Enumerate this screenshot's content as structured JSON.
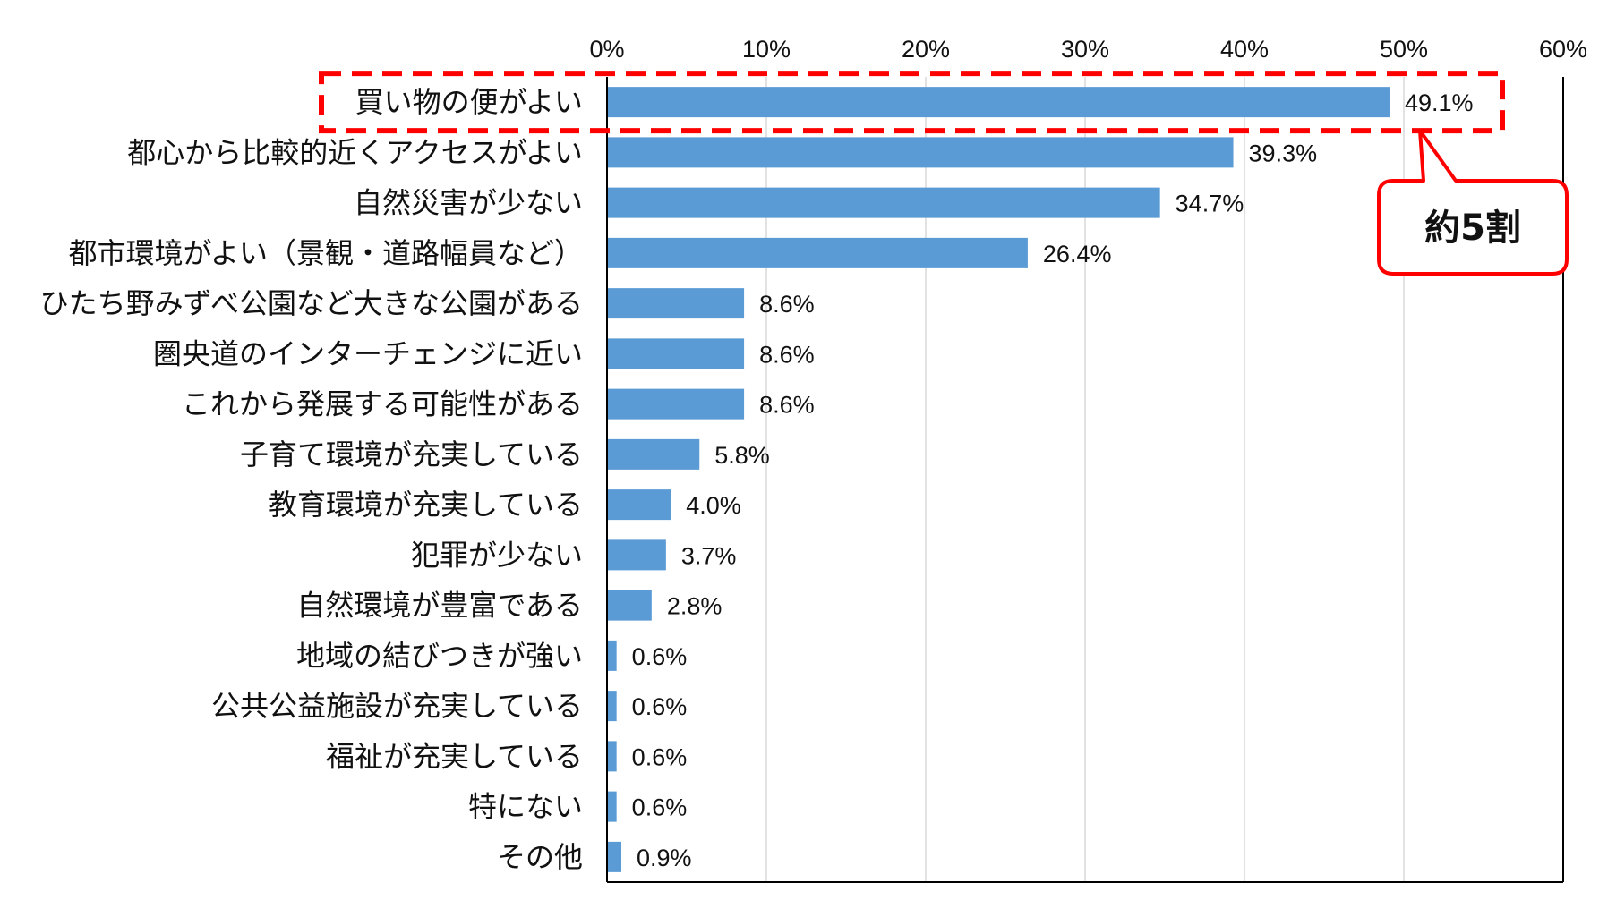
{
  "chart_data": {
    "type": "bar",
    "orientation": "horizontal",
    "categories": [
      "買い物の便がよい",
      "都心から比較的近くアクセスがよい",
      "自然災害が少ない",
      "都市環境がよい（景観・道路幅員など）",
      "ひたち野みずべ公園など大きな公園がある",
      "圏央道のインターチェンジに近い",
      "これから発展する可能性がある",
      "子育て環境が充実している",
      "教育環境が充実している",
      "犯罪が少ない",
      "自然環境が豊富である",
      "地域の結びつきが強い",
      "公共公益施設が充実している",
      "福祉が充実している",
      "特にない",
      "その他"
    ],
    "values": [
      49.1,
      39.3,
      34.7,
      26.4,
      8.6,
      8.6,
      8.6,
      5.8,
      4.0,
      3.7,
      2.8,
      0.6,
      0.6,
      0.6,
      0.6,
      0.9
    ],
    "value_labels": [
      "49.1%",
      "39.3%",
      "34.7%",
      "26.4%",
      "8.6%",
      "8.6%",
      "8.6%",
      "5.8%",
      "4.0%",
      "3.7%",
      "2.8%",
      "0.6%",
      "0.6%",
      "0.6%",
      "0.6%",
      "0.9%"
    ],
    "x_ticks": [
      0,
      10,
      20,
      30,
      40,
      50,
      60
    ],
    "x_tick_labels": [
      "0%",
      "10%",
      "20%",
      "30%",
      "40%",
      "50%",
      "60%"
    ],
    "xlim": [
      0,
      60
    ],
    "x_axis_position": "top",
    "grid": true,
    "legend": "none",
    "bar_color": "#5B9BD5",
    "grid_color": "#D9D9D9",
    "axis_color": "#000000",
    "highlight": {
      "category": "買い物の便がよい",
      "style": "dashed-box",
      "color": "#FF0000"
    },
    "callout": {
      "text": "約5割",
      "target_category": "買い物の便がよい",
      "border_color": "#FF0000"
    }
  }
}
